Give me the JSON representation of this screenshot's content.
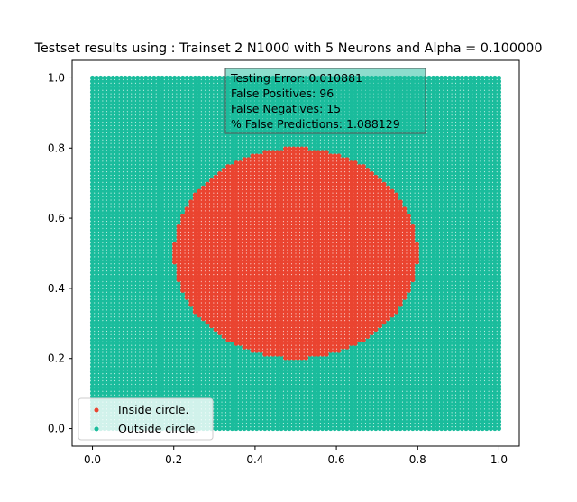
{
  "chart_data": {
    "type": "scatter",
    "title": "Testset results using : Trainset 2 N1000 with 5 Neurons and Alpha = 0.100000",
    "xlabel": "",
    "ylabel": "",
    "xlim": [
      -0.05,
      1.05
    ],
    "ylim": [
      -0.05,
      1.05
    ],
    "xticks": [
      0.0,
      0.2,
      0.4,
      0.6,
      0.8,
      1.0
    ],
    "yticks": [
      0.0,
      0.2,
      0.4,
      0.6,
      0.8,
      1.0
    ],
    "xtick_labels": [
      "0.0",
      "0.2",
      "0.4",
      "0.6",
      "0.8",
      "1.0"
    ],
    "ytick_labels": [
      "0.0",
      "0.2",
      "0.4",
      "0.6",
      "0.8",
      "1.0"
    ],
    "grid": false,
    "legend_position": "lower-left",
    "series": [
      {
        "name": "Inside circle.",
        "color": "#ea4430",
        "region": {
          "shape": "circle",
          "center": [
            0.5,
            0.5
          ],
          "radius": 0.3
        },
        "grid_points": {
          "start": 0,
          "stop": 1,
          "n": 100
        }
      },
      {
        "name": "Outside circle.",
        "color": "#1abc9c",
        "region": {
          "shape": "outside-circle",
          "center": [
            0.5,
            0.5
          ],
          "radius": 0.3
        },
        "grid_points": {
          "start": 0,
          "stop": 1,
          "n": 100
        }
      }
    ],
    "annotation": {
      "lines": [
        "Testing Error: 0.010881",
        "False Positives: 96",
        "False Negatives: 15",
        "% False Predictions: 1.088129"
      ],
      "box_color": "#1abc9c",
      "position": "top-center"
    }
  }
}
